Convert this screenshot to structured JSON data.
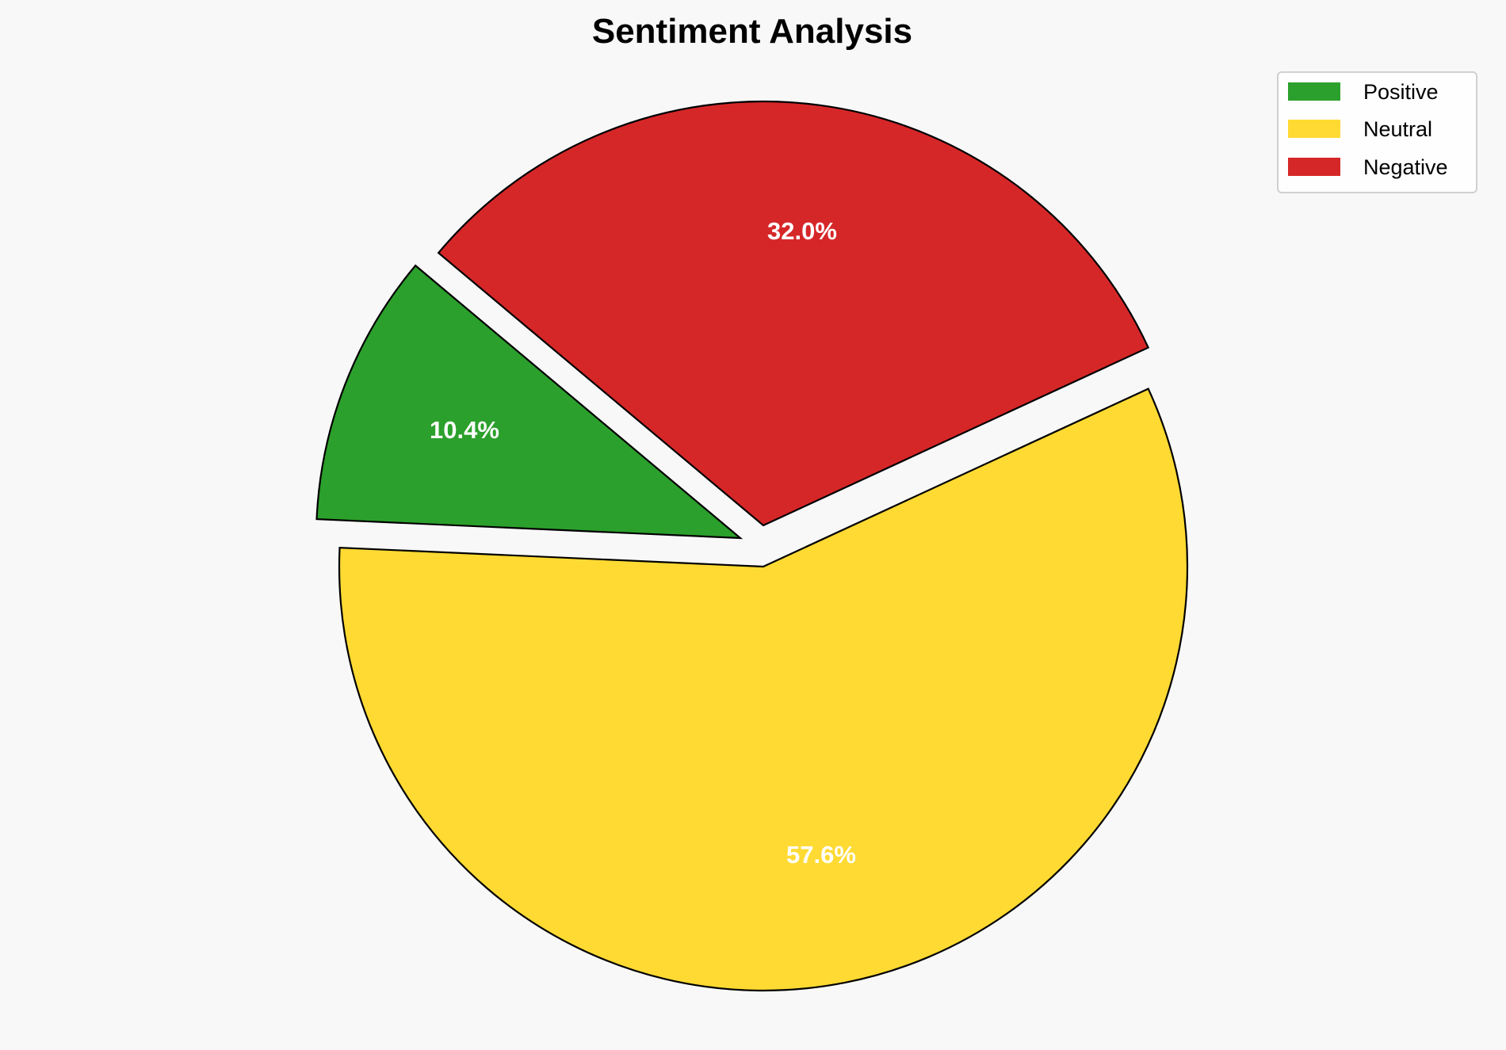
{
  "chart_data": {
    "type": "pie",
    "title": "Sentiment Analysis",
    "categories": [
      "Positive",
      "Neutral",
      "Negative"
    ],
    "values": [
      10.4,
      57.6,
      32.0
    ],
    "labels": [
      "10.4%",
      "57.6%",
      "32.0%"
    ],
    "colors": [
      "#2ca02c",
      "#ffda33",
      "#d62728"
    ],
    "exploded": [
      true,
      false,
      true
    ],
    "start_angle_deg": 140,
    "direction": "counterclockwise",
    "legend": {
      "placement": "top-right",
      "entries": [
        "Positive",
        "Neutral",
        "Negative"
      ]
    },
    "edge_color": "#000000",
    "background": "#f8f8f8"
  }
}
